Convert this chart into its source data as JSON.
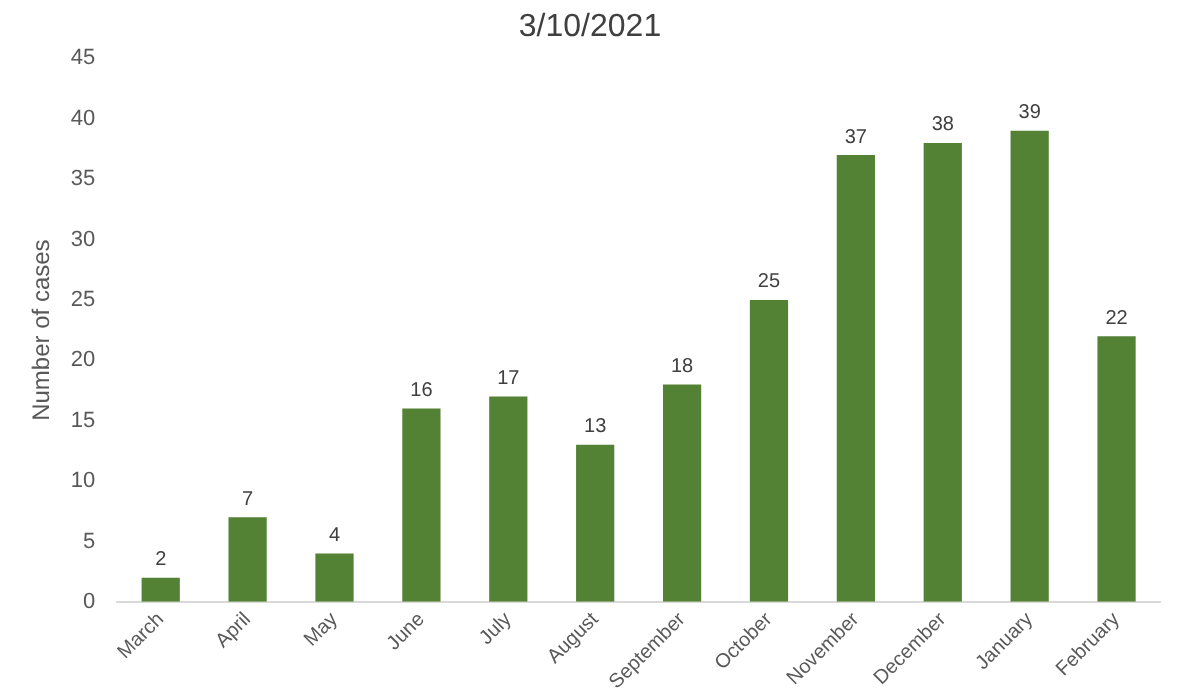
{
  "chart_data": {
    "type": "bar",
    "title": "3/10/2021",
    "ylabel": "Number of cases",
    "categories": [
      "March",
      "April",
      "May",
      "June",
      "July",
      "August",
      "September",
      "October",
      "November",
      "December",
      "January",
      "February"
    ],
    "values": [
      2,
      7,
      4,
      16,
      17,
      13,
      18,
      25,
      37,
      38,
      39,
      22
    ],
    "color": "#548235",
    "ylim": [
      0,
      45
    ],
    "yticks": [
      0,
      5,
      10,
      15,
      20,
      25,
      30,
      35,
      40,
      45
    ],
    "data_labels": true
  }
}
